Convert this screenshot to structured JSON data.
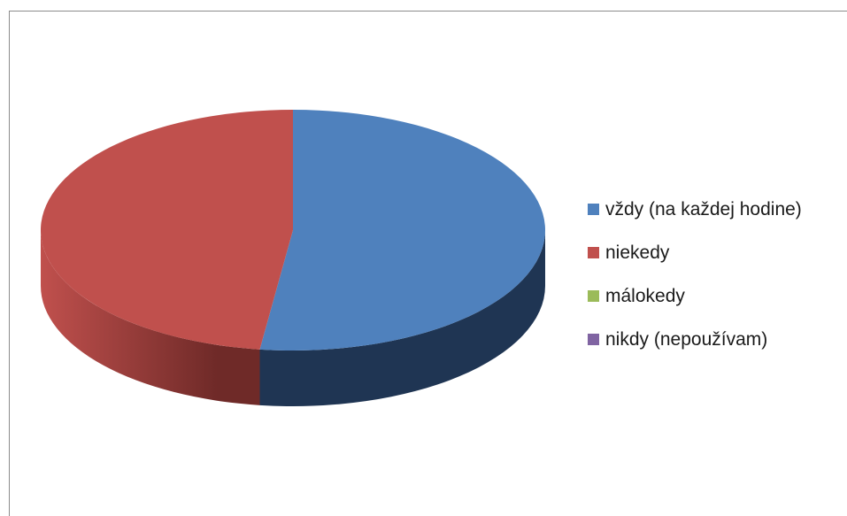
{
  "chart_data": {
    "type": "pie",
    "style": "3d",
    "title": "",
    "legend_position": "right",
    "categories": [
      "vždy (na každej hodine)",
      "niekedy",
      "málokedy",
      "nikdy (nepoužívam)"
    ],
    "values": [
      52.1,
      47.9,
      0,
      0
    ],
    "colors": [
      "#4F81BD",
      "#C0504D",
      "#9BBB59",
      "#8064A2"
    ],
    "side_colors": [
      "#1F3553",
      "#6F2A28",
      "#5A6E33",
      "#4A3A60"
    ]
  }
}
